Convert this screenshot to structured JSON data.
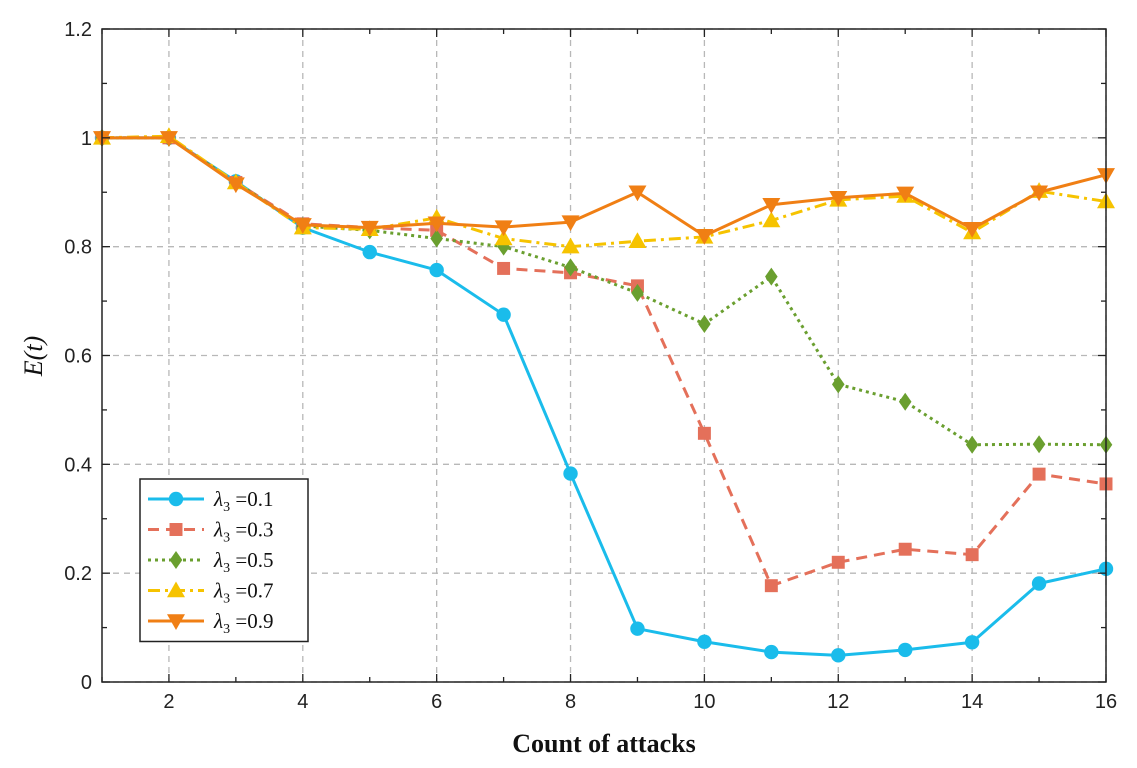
{
  "chart_data": {
    "type": "line",
    "title": "",
    "xlabel": "Count of attacks",
    "ylabel": "E(t)",
    "xlim": [
      1,
      16
    ],
    "ylim": [
      0,
      1.2
    ],
    "xticks": [
      2,
      4,
      6,
      8,
      10,
      12,
      14,
      16
    ],
    "xtick_labels": [
      "2",
      "4",
      "6",
      "8",
      "10",
      "12",
      "14",
      "16"
    ],
    "yticks": [
      0,
      0.2,
      0.4,
      0.6,
      0.8,
      1.0,
      1.2
    ],
    "ytick_labels": [
      "0",
      "0.2",
      "0.4",
      "0.6",
      "0.8",
      "1",
      "1.2"
    ],
    "grid": true,
    "legend_position": "bottom-left",
    "x": [
      1,
      2,
      3,
      4,
      5,
      6,
      7,
      8,
      9,
      10,
      11,
      12,
      13,
      14,
      15,
      16
    ],
    "series": [
      {
        "name": "λ3 =0.1",
        "legend_symbol": "λ",
        "legend_sub": "3",
        "legend_value": " =0.1",
        "color": "#1ABCEB",
        "marker": "circle",
        "dash": "solid",
        "values": [
          1.0,
          1.0,
          0.92,
          0.835,
          0.79,
          0.757,
          0.675,
          0.383,
          0.098,
          0.074,
          0.055,
          0.049,
          0.059,
          0.073,
          0.181,
          0.208
        ]
      },
      {
        "name": "λ3 =0.3",
        "legend_symbol": "λ",
        "legend_sub": "3",
        "legend_value": " =0.3",
        "color": "#E4705A",
        "marker": "square",
        "dash": "dashed",
        "values": [
          1.0,
          1.0,
          0.918,
          0.842,
          0.835,
          0.83,
          0.76,
          0.752,
          0.728,
          0.457,
          0.177,
          0.22,
          0.244,
          0.234,
          0.382,
          0.364
        ]
      },
      {
        "name": "λ3 =0.5",
        "legend_symbol": "λ",
        "legend_sub": "3",
        "legend_value": " =0.5",
        "color": "#6A9F2F",
        "marker": "diamond",
        "dash": "dotted",
        "values": [
          1.0,
          1.0,
          0.918,
          0.838,
          0.83,
          0.815,
          0.8,
          0.762,
          0.715,
          0.658,
          0.745,
          0.547,
          0.515,
          0.436,
          0.437,
          0.436
        ]
      },
      {
        "name": "λ3 =0.7",
        "legend_symbol": "λ",
        "legend_sub": "3",
        "legend_value": " =0.7",
        "color": "#F6C300",
        "marker": "triangle-up",
        "dash": "dashdot",
        "values": [
          1.0,
          1.003,
          0.918,
          0.835,
          0.832,
          0.853,
          0.815,
          0.8,
          0.81,
          0.818,
          0.848,
          0.886,
          0.893,
          0.826,
          0.902,
          0.883
        ]
      },
      {
        "name": "λ3 =0.9",
        "legend_symbol": "λ",
        "legend_sub": "3",
        "legend_value": " =0.9",
        "color": "#F07F14",
        "marker": "triangle-down",
        "dash": "solid",
        "values": [
          1.0,
          1.0,
          0.915,
          0.84,
          0.835,
          0.843,
          0.836,
          0.845,
          0.9,
          0.82,
          0.877,
          0.89,
          0.898,
          0.833,
          0.9,
          0.932
        ]
      }
    ]
  }
}
